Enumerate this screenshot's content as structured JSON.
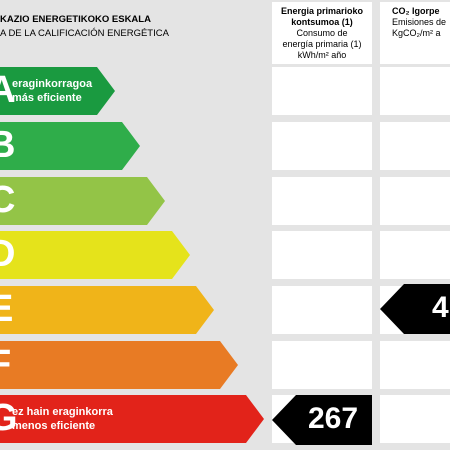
{
  "header": {
    "title_eu": "KAZIO ENERGETIKOKO ESKALA",
    "title_es": "A DE LA CALIFICACIÓN ENERGÉTICA"
  },
  "columns": {
    "primary": {
      "title_eu": "Energia primarioko",
      "title_eu_2": "kontsumoa (1)",
      "title_es": "Consumo de",
      "title_es_2": "energía primaria (1)",
      "unit": "kWh/m² año"
    },
    "co2": {
      "title_eu": "CO₂ Igorpe",
      "title_es": "Emisiones de",
      "unit": "KgCO₂/m² a"
    }
  },
  "scale": [
    {
      "letter": "A",
      "color": "#1a9a40",
      "caption_1": "eraginkorragoa",
      "caption_2": "más eficiente"
    },
    {
      "letter": "B",
      "color": "#2fad4a",
      "caption_1": "",
      "caption_2": ""
    },
    {
      "letter": "C",
      "color": "#93c447",
      "caption_1": "",
      "caption_2": ""
    },
    {
      "letter": "D",
      "color": "#e5e31b",
      "caption_1": "",
      "caption_2": ""
    },
    {
      "letter": "E",
      "color": "#f0b419",
      "caption_1": "",
      "caption_2": ""
    },
    {
      "letter": "F",
      "color": "#e87b24",
      "caption_1": "",
      "caption_2": ""
    },
    {
      "letter": "G",
      "color": "#e2231a",
      "caption_1": "ez hain eraginkorra",
      "caption_2": "menos eficiente"
    }
  ],
  "ratings": {
    "primary_value": "267",
    "primary_class": "G",
    "co2_value": "4",
    "co2_class": "E"
  }
}
